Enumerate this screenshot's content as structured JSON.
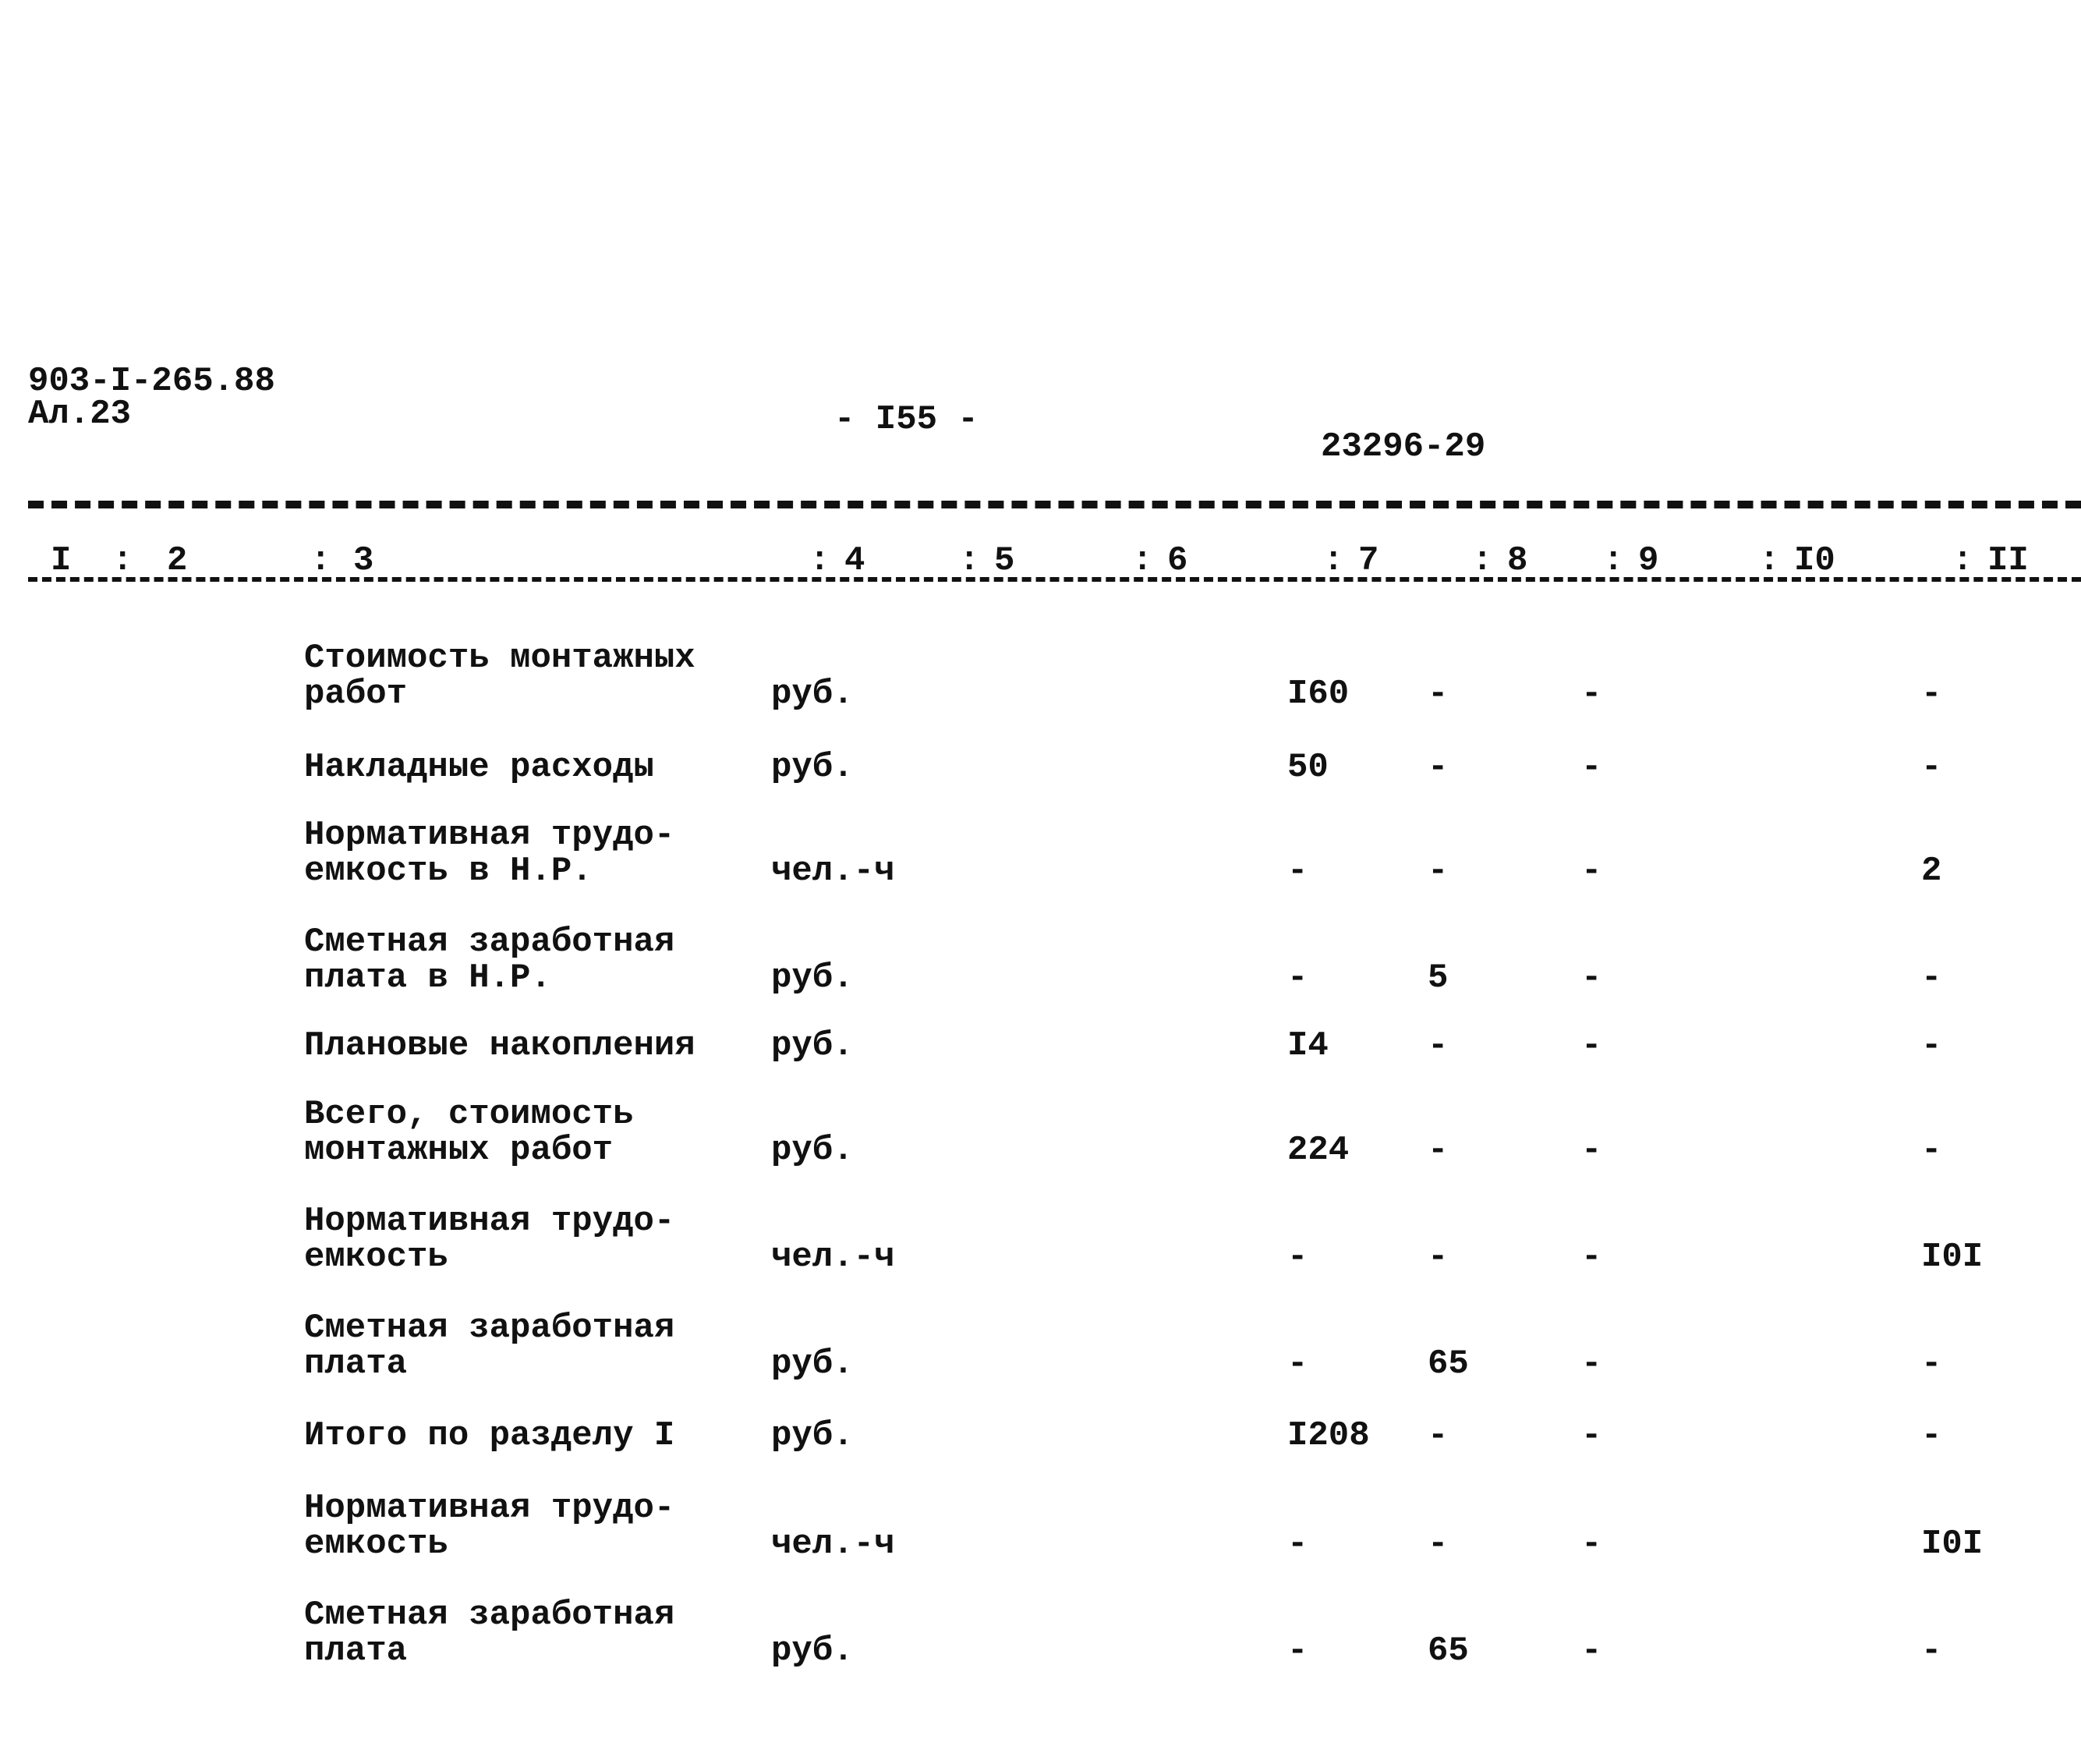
{
  "header": {
    "doc_code": "903-I-265.88",
    "sheet": "Ал.23",
    "page_number": "- I55 -",
    "stamp_number": "23296-29"
  },
  "column_headers": [
    "I",
    "2",
    "3",
    "4",
    "5",
    "6",
    "7",
    "8",
    "9",
    "I0",
    "II"
  ],
  "rows": [
    {
      "label": "Стоимость монтажных\nработ",
      "unit": "руб.",
      "c7": "I60",
      "c8": "-",
      "c9": "-",
      "c11": "-"
    },
    {
      "label": "Накладные расходы",
      "unit": "руб.",
      "c7": "50",
      "c8": "-",
      "c9": "-",
      "c11": "-"
    },
    {
      "label": "Нормативная трудо-\nемкость в Н.Р.",
      "unit": "чел.-ч",
      "c7": "-",
      "c8": "-",
      "c9": "-",
      "c11": "2"
    },
    {
      "label": "Сметная заработная\nплата в Н.Р.",
      "unit": "руб.",
      "c7": "-",
      "c8": "5",
      "c9": "-",
      "c11": "-"
    },
    {
      "label": "Плановые накопления",
      "unit": "руб.",
      "c7": "I4",
      "c8": "-",
      "c9": "-",
      "c11": "-"
    },
    {
      "label": "Всего, стоимость\nмонтажных работ",
      "unit": "руб.",
      "c7": "224",
      "c8": "-",
      "c9": "-",
      "c11": "-"
    },
    {
      "label": "Нормативная трудо-\nемкость",
      "unit": "чел.-ч",
      "c7": "-",
      "c8": "-",
      "c9": "-",
      "c11": "I0I"
    },
    {
      "label": "Сметная заработная\nплата",
      "unit": "руб.",
      "c7": "-",
      "c8": "65",
      "c9": "-",
      "c11": "-"
    },
    {
      "label": "Итого по разделу I",
      "unit": "руб.",
      "c7": "I208",
      "c8": "-",
      "c9": "-",
      "c11": "-"
    },
    {
      "label": "Нормативная трудо-\nемкость",
      "unit": "чел.-ч",
      "c7": "-",
      "c8": "-",
      "c9": "-",
      "c11": "I0I"
    },
    {
      "label": "Сметная заработная\nплата",
      "unit": "руб.",
      "c7": "-",
      "c8": "65",
      "c9": "-",
      "c11": "-"
    }
  ]
}
